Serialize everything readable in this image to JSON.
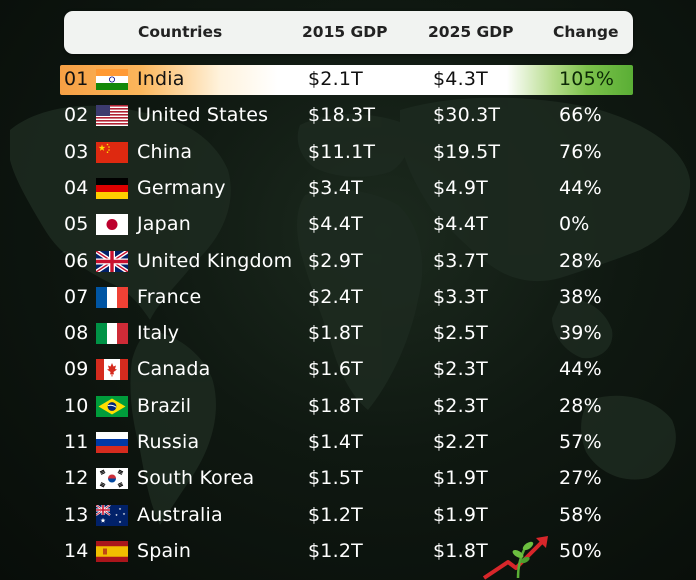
{
  "colors": {
    "background": "#0d150f",
    "header_bg": "#f1f3f1",
    "highlight_saffron": "#f6a044",
    "highlight_green": "#5aae35"
  },
  "header": {
    "countries": "Countries",
    "gdp_2015": "2015 GDP",
    "gdp_2025": "2025 GDP",
    "change": "Change"
  },
  "chart_data": {
    "type": "table",
    "columns": [
      "Countries",
      "2015 GDP",
      "2025 GDP",
      "Change"
    ],
    "rows": [
      {
        "rank": "01",
        "flag": "india-flag-icon",
        "country": "India",
        "gdp_2015": "$2.1T",
        "gdp_2025": "$4.3T",
        "change": "105%"
      },
      {
        "rank": "02",
        "flag": "united-states-flag-icon",
        "country": "United States",
        "gdp_2015": "$18.3T",
        "gdp_2025": "$30.3T",
        "change": "66%"
      },
      {
        "rank": "03",
        "flag": "china-flag-icon",
        "country": "China",
        "gdp_2015": "$11.1T",
        "gdp_2025": "$19.5T",
        "change": "76%"
      },
      {
        "rank": "04",
        "flag": "germany-flag-icon",
        "country": "Germany",
        "gdp_2015": "$3.4T",
        "gdp_2025": "$4.9T",
        "change": "44%"
      },
      {
        "rank": "05",
        "flag": "japan-flag-icon",
        "country": "Japan",
        "gdp_2015": "$4.4T",
        "gdp_2025": "$4.4T",
        "change": "0%"
      },
      {
        "rank": "06",
        "flag": "united-kingdom-flag-icon",
        "country": "United Kingdom",
        "gdp_2015": "$2.9T",
        "gdp_2025": "$3.7T",
        "change": "28%"
      },
      {
        "rank": "07",
        "flag": "france-flag-icon",
        "country": "France",
        "gdp_2015": "$2.4T",
        "gdp_2025": "$3.3T",
        "change": "38%"
      },
      {
        "rank": "08",
        "flag": "italy-flag-icon",
        "country": "Italy",
        "gdp_2015": "$1.8T",
        "gdp_2025": "$2.5T",
        "change": "39%"
      },
      {
        "rank": "09",
        "flag": "canada-flag-icon",
        "country": "Canada",
        "gdp_2015": "$1.6T",
        "gdp_2025": "$2.3T",
        "change": "44%"
      },
      {
        "rank": "10",
        "flag": "brazil-flag-icon",
        "country": "Brazil",
        "gdp_2015": "$1.8T",
        "gdp_2025": "$2.3T",
        "change": "28%"
      },
      {
        "rank": "11",
        "flag": "russia-flag-icon",
        "country": "Russia",
        "gdp_2015": "$1.4T",
        "gdp_2025": "$2.2T",
        "change": "57%"
      },
      {
        "rank": "12",
        "flag": "south-korea-flag-icon",
        "country": "South Korea",
        "gdp_2015": "$1.5T",
        "gdp_2025": "$1.9T",
        "change": "27%"
      },
      {
        "rank": "13",
        "flag": "australia-flag-icon",
        "country": "Australia",
        "gdp_2015": "$1.2T",
        "gdp_2025": "$1.9T",
        "change": "58%"
      },
      {
        "rank": "14",
        "flag": "spain-flag-icon",
        "country": "Spain",
        "gdp_2015": "$1.2T",
        "gdp_2025": "$1.8T",
        "change": "50%"
      }
    ]
  }
}
